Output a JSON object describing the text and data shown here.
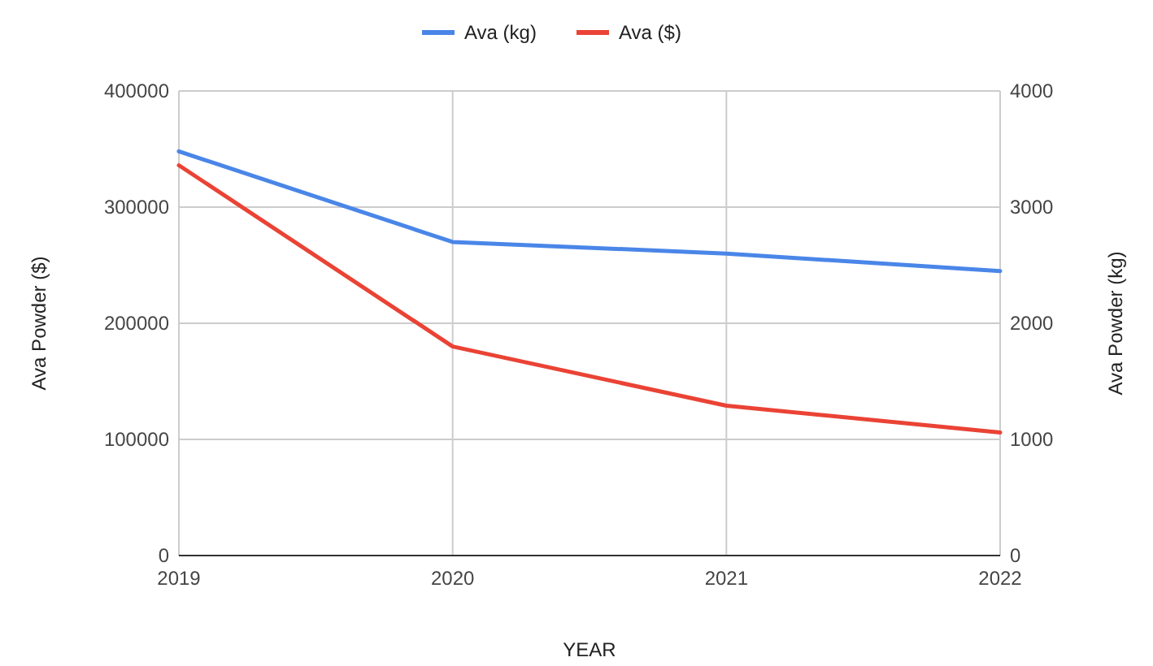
{
  "chart_data": {
    "type": "line",
    "xlabel": "YEAR",
    "ylabel": "Ava Powder ($)",
    "y2label": "Ava Powder (kg)",
    "x": [
      2019,
      2020,
      2021,
      2022
    ],
    "xlim": [
      2019,
      2022
    ],
    "xticks": [
      2019,
      2020,
      2021,
      2022
    ],
    "ylim": [
      0,
      400000
    ],
    "yticks": [
      0,
      100000,
      200000,
      300000,
      400000
    ],
    "y2lim": [
      0,
      4000
    ],
    "y2ticks": [
      0,
      1000,
      2000,
      3000,
      4000
    ],
    "series": [
      {
        "name": "Ava (kg)",
        "color": "#4a86e8",
        "axis": "y2",
        "values": [
          3480,
          2700,
          2600,
          2450
        ]
      },
      {
        "name": "Ava ($)",
        "color": "#ea4335",
        "values": [
          336000,
          180000,
          129000,
          106000
        ]
      }
    ],
    "grid": true,
    "legend": "top",
    "marker": "none",
    "line_style": "solid"
  }
}
